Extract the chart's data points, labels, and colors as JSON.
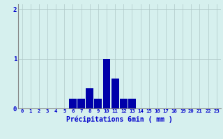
{
  "hours": [
    0,
    1,
    2,
    3,
    4,
    5,
    6,
    7,
    8,
    9,
    10,
    11,
    12,
    13,
    14,
    15,
    16,
    17,
    18,
    19,
    20,
    21,
    22,
    23
  ],
  "values": [
    0,
    0,
    0,
    0,
    0,
    0,
    0.2,
    0.2,
    0.4,
    0.2,
    1.0,
    0.6,
    0.2,
    0.2,
    0,
    0,
    0,
    0,
    0,
    0,
    0,
    0,
    0,
    0
  ],
  "bar_color": "#0000aa",
  "bg_color": "#d6f0ee",
  "grid_color": "#b0c8c8",
  "xlabel": "Précipitations 6min ( mm )",
  "xlabel_color": "#0000cc",
  "tick_color": "#0000cc",
  "ylim": [
    0,
    2.1
  ],
  "yticks": [
    0,
    1,
    2
  ],
  "bar_width": 0.9
}
